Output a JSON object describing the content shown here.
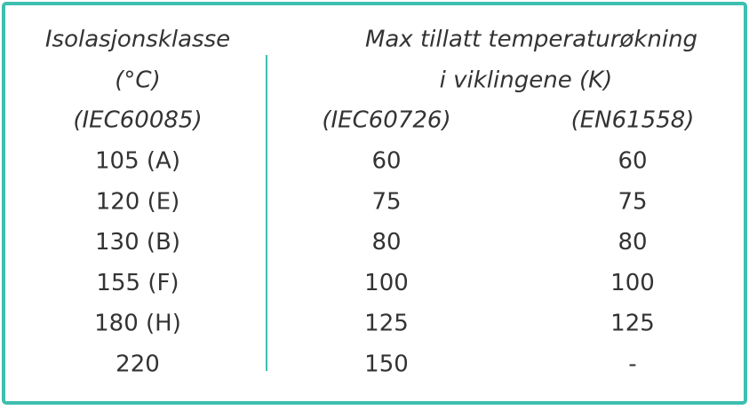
{
  "table": {
    "header": {
      "col1": [
        "Isolasjonsklasse",
        "(°C)",
        "(IEC60085)"
      ],
      "col2": [
        "Max tillatt temperaturøkning",
        "i viklingene (K)"
      ],
      "sub": [
        "(IEC60726)",
        "(EN61558)"
      ]
    },
    "rows": [
      [
        "105 (A)",
        "60",
        "60"
      ],
      [
        "120 (E)",
        "75",
        "75"
      ],
      [
        "130 (B)",
        "80",
        "80"
      ],
      [
        "155 (F)",
        "100",
        "100"
      ],
      [
        "180 (H)",
        "125",
        "125"
      ],
      [
        "220",
        "150",
        "-"
      ]
    ]
  }
}
